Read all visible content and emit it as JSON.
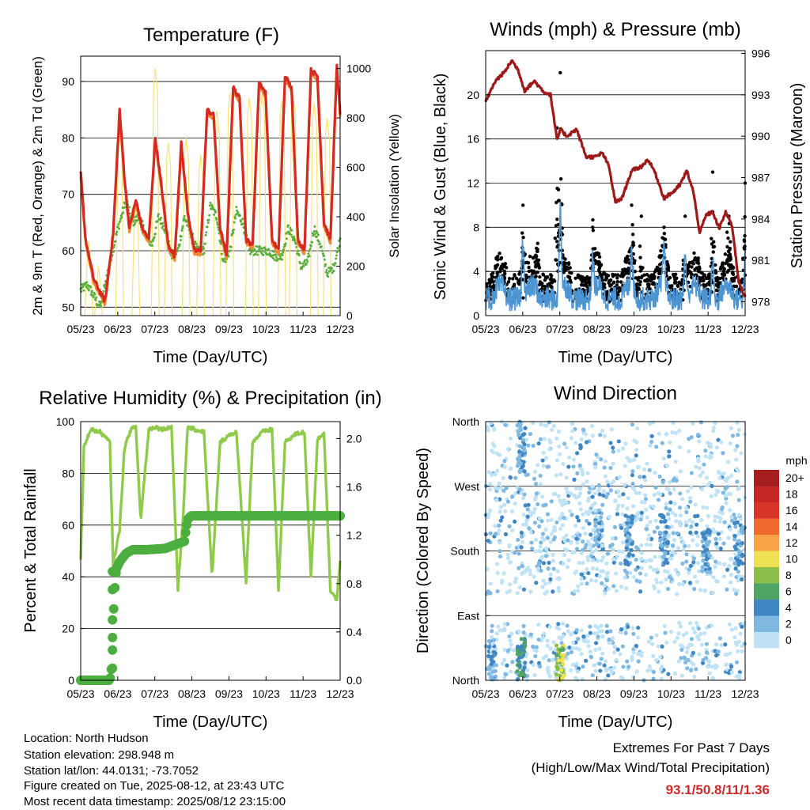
{
  "panels": {
    "temperature": {
      "title": "Temperature (F)",
      "xlabel": "Time (Day/UTC)",
      "ylabel_left": "2m & 9m T (Red, Orange) & 2m Td (Green)",
      "ylabel_right": "Solar Insolation (Yellow)",
      "x_ticks": [
        "05/23",
        "06/23",
        "07/23",
        "08/23",
        "09/23",
        "10/23",
        "11/23",
        "12/23"
      ],
      "y_ticks_left": [
        "50",
        "60",
        "70",
        "80",
        "90"
      ],
      "y_ticks_right": [
        "0",
        "200",
        "400",
        "600",
        "800",
        "1000"
      ]
    },
    "wind_pressure": {
      "title": "Winds (mph) & Pressure (mb)",
      "xlabel": "Time (Day/UTC)",
      "ylabel_left": "Sonic Wind & Gust (Blue, Black)",
      "ylabel_right": "Station Pressure (Maroon)",
      "x_ticks": [
        "05/23",
        "06/23",
        "07/23",
        "08/23",
        "09/23",
        "10/23",
        "11/23",
        "12/23"
      ],
      "y_ticks_left": [
        "0",
        "4",
        "8",
        "12",
        "16",
        "20"
      ],
      "y_ticks_right": [
        "978",
        "981",
        "984",
        "987",
        "990",
        "993",
        "996"
      ]
    },
    "humidity_precip": {
      "title": "Relative Humidity (%) & Precipitation (in)",
      "xlabel": "Time (Day/UTC)",
      "ylabel_left": "Percent & Total Rainfall",
      "x_ticks": [
        "05/23",
        "06/23",
        "07/23",
        "08/23",
        "09/23",
        "10/23",
        "11/23",
        "12/23"
      ],
      "y_ticks_left": [
        "0",
        "20",
        "40",
        "60",
        "80",
        "100"
      ],
      "y_ticks_right": [
        "0.0",
        "0.4",
        "0.8",
        "1.2",
        "1.6",
        "2.0"
      ]
    },
    "wind_direction": {
      "title": "Wind Direction",
      "xlabel": "Time (Day/UTC)",
      "ylabel_left": "Direction (Colored By Speed)",
      "x_ticks": [
        "05/23",
        "06/23",
        "07/23",
        "08/23",
        "09/23",
        "10/23",
        "11/23",
        "12/23"
      ],
      "y_ticks_left": [
        "North",
        "East",
        "South",
        "West",
        "North"
      ],
      "legend_title": "mph",
      "legend_labels": [
        "20+",
        "18",
        "16",
        "14",
        "12",
        "10",
        "8",
        "6",
        "4",
        "2",
        "0"
      ],
      "legend_colors": [
        "#a51f1f",
        "#c42727",
        "#d9362b",
        "#ee6a2f",
        "#f7a448",
        "#ede052",
        "#8cbf4a",
        "#4ea565",
        "#3f86c2",
        "#7fb9e2",
        "#bfe3f5"
      ]
    }
  },
  "footer": {
    "location": "Location: North Hudson",
    "elevation": "Station elevation: 298.948 m",
    "latlon": "Station lat/lon: 44.0131; -73.7052",
    "created": "Figure created on Tue, 2025-08-12, at 23:43 UTC",
    "recent": "Most recent data timestamp: 2025/08/12 23:15:00"
  },
  "extremes": {
    "title": "Extremes For Past 7 Days",
    "subtitle": "(High/Low/Max Wind/Total Precipitation)",
    "values": "93.1/50.8/11/1.36"
  },
  "colors": {
    "temp_red": "#d42a22",
    "temp_orange": "#f08a30",
    "dewpoint_green": "#5aaf3c",
    "solar_yellow": "#f7e27a",
    "gust_black": "#000000",
    "wind_blue": "#4c95d2",
    "pressure_maroon": "#9e1a1a",
    "rh_green": "#8fca4b",
    "precip_green": "#4cae3f"
  },
  "chart_data": [
    {
      "type": "line",
      "title": "Temperature (F)",
      "xlabel": "Time (Day/UTC)",
      "ylabel": "2m & 9m T (Red, Orange) & 2m Td (Green)",
      "y2label": "Solar Insolation (Yellow)",
      "x_ticks": [
        "05/23",
        "06/23",
        "07/23",
        "08/23",
        "09/23",
        "10/23",
        "11/23",
        "12/23"
      ],
      "ylim": [
        48.5,
        94.5
      ],
      "y2lim": [
        0,
        1050
      ],
      "series": [
        {
          "name": "2m T",
          "x": [
            0,
            0.15,
            0.4,
            0.75,
            1,
            1.2,
            1.35,
            1.5,
            1.7,
            1.9,
            2.1,
            2.3,
            2.5,
            2.7,
            2.9,
            3.1,
            3.3,
            3.5,
            3.7,
            3.9,
            4.1,
            4.3,
            4.5,
            4.7,
            4.9,
            5.1,
            5.3,
            5.5,
            5.7,
            5.9,
            6.1,
            6.3,
            6.5,
            6.7,
            6.9,
            7.1,
            7.3,
            7.5,
            7.7,
            7.9,
            8
          ],
          "values": [
            74,
            62,
            55,
            51,
            63,
            85,
            73,
            64,
            69,
            64,
            62,
            80,
            71,
            61,
            59,
            79,
            67,
            60,
            60,
            85,
            84,
            64,
            59,
            89,
            87,
            62,
            61,
            90,
            88,
            62,
            60,
            91,
            89,
            62,
            60,
            92,
            91,
            65,
            62,
            93,
            84
          ]
        },
        {
          "name": "2m Td",
          "x": [
            0,
            0.2,
            0.4,
            0.6,
            0.9,
            1.15,
            1.4,
            1.6,
            1.8,
            2,
            2.2,
            2.4,
            2.6,
            2.8,
            3,
            3.2,
            3.4,
            3.6,
            3.8,
            4,
            4.2,
            4.4,
            4.6,
            4.8,
            5,
            5.2,
            5.4,
            5.6,
            5.8,
            6,
            6.2,
            6.4,
            6.6,
            6.8,
            7,
            7.2,
            7.4,
            7.6,
            7.8,
            8
          ],
          "values": [
            53,
            54,
            52,
            50,
            58,
            64,
            69,
            65,
            66,
            63,
            61,
            66,
            64,
            59,
            60,
            66,
            63,
            60,
            60,
            68,
            66,
            58,
            60,
            67,
            65,
            60,
            60,
            60,
            60,
            59,
            59,
            64,
            62,
            57,
            58,
            64,
            61,
            56,
            57,
            62
          ]
        },
        {
          "name": "Solar Insolation",
          "axis": "right",
          "peaks_x": [
            0.25,
            0.55,
            1.2,
            1.7,
            2.3,
            2.7,
            3.25,
            3.7,
            4.2,
            4.6,
            5.2,
            5.6,
            6.2,
            6.55,
            7.2,
            7.6
          ],
          "peaks_values": [
            300,
            200,
            750,
            450,
            1000,
            700,
            720,
            650,
            830,
            900,
            880,
            900,
            870,
            900,
            860,
            800
          ]
        }
      ]
    },
    {
      "type": "line",
      "title": "Winds (mph) & Pressure (mb)",
      "xlabel": "Time (Day/UTC)",
      "ylabel": "Sonic Wind & Gust (Blue, Black)",
      "y2label": "Station Pressure (Maroon)",
      "x_ticks": [
        "05/23",
        "06/23",
        "07/23",
        "08/23",
        "09/23",
        "10/23",
        "11/23",
        "12/23"
      ],
      "ylim": [
        0,
        24
      ],
      "y2lim": [
        977,
        996.2
      ],
      "series": [
        {
          "name": "Station Pressure",
          "axis": "right",
          "x": [
            0,
            0.3,
            0.6,
            0.8,
            1,
            1.2,
            1.5,
            1.8,
            2,
            2.2,
            2.3,
            2.5,
            2.8,
            3.1,
            3.4,
            3.6,
            3.8,
            4,
            4.2,
            4.5,
            4.8,
            5,
            5.2,
            5.5,
            5.8,
            6,
            6.2,
            6.4,
            6.6,
            6.8,
            7,
            7.2,
            7.4,
            7.6,
            7.8,
            8
          ],
          "values": [
            992.5,
            994,
            994.7,
            995.5,
            994.8,
            993.3,
            994,
            993.2,
            993,
            989.7,
            990.5,
            990,
            990.5,
            988.5,
            988.5,
            988.8,
            987.8,
            985.2,
            985.5,
            987.5,
            987.8,
            988.3,
            987.5,
            985.5,
            986,
            986.5,
            987.5,
            986,
            983,
            984.3,
            984.5,
            983.3,
            984.5,
            983.5,
            979.5,
            978.3
          ]
        },
        {
          "name": "Gust",
          "peaks_x": [
            1.15,
            1.6,
            2.2,
            2.3,
            3.3,
            4.5,
            4.8,
            5.5,
            6.15,
            7,
            7.5,
            8
          ],
          "peaks_values": [
            10,
            6,
            17,
            22,
            8,
            10,
            9,
            8,
            9,
            13,
            9,
            12
          ]
        },
        {
          "name": "Sonic Wind",
          "peaks_x": [
            1.15,
            2.3,
            3.3,
            4.5,
            5.5,
            6.15,
            7,
            8
          ],
          "peaks_values": [
            8,
            11,
            4,
            5,
            5,
            6,
            5,
            5
          ]
        }
      ]
    },
    {
      "type": "line",
      "title": "Relative Humidity (%) & Precipitation (in)",
      "xlabel": "Time (Day/UTC)",
      "ylabel": "Percent & Total Rainfall",
      "x_ticks": [
        "05/23",
        "06/23",
        "07/23",
        "08/23",
        "09/23",
        "10/23",
        "11/23",
        "12/23"
      ],
      "ylim": [
        0,
        100
      ],
      "y2lim": [
        0,
        2.14
      ],
      "series": [
        {
          "name": "Relative Humidity",
          "x": [
            0,
            0.1,
            0.3,
            0.6,
            0.9,
            1.0,
            1.2,
            1.35,
            1.55,
            1.7,
            1.85,
            2.1,
            2.3,
            2.5,
            2.8,
            3.0,
            3.15,
            3.3,
            3.5,
            3.8,
            4.05,
            4.3,
            4.6,
            4.8,
            5.1,
            5.3,
            5.6,
            5.9,
            6.1,
            6.3,
            6.6,
            6.9,
            7.1,
            7.3,
            7.5,
            7.7,
            7.9,
            8
          ],
          "values": [
            47,
            90,
            97,
            96,
            92,
            45,
            58,
            90,
            97,
            98,
            62,
            97,
            98,
            97,
            98,
            35,
            62,
            98,
            97,
            96,
            40,
            92,
            95,
            96,
            38,
            92,
            96,
            97,
            35,
            92,
            95,
            96,
            40,
            93,
            96,
            35,
            31,
            46
          ]
        },
        {
          "name": "Total Precipitation",
          "axis": "right",
          "x": [
            0,
            0.4,
            0.9,
            0.95,
            1.0,
            1.05,
            1.1,
            1.2,
            1.4,
            1.6,
            2.0,
            2.6,
            3.2,
            3.25,
            3.3,
            3.4,
            8
          ],
          "values": [
            0,
            0,
            0,
            0.1,
            0.5,
            0.75,
            0.92,
            0.98,
            1.05,
            1.08,
            1.08,
            1.09,
            1.15,
            1.25,
            1.33,
            1.36,
            1.36
          ]
        }
      ]
    },
    {
      "type": "scatter",
      "title": "Wind Direction",
      "xlabel": "Time (Day/UTC)",
      "ylabel": "Direction (Colored By Speed)",
      "x_ticks": [
        "05/23",
        "06/23",
        "07/23",
        "08/23",
        "09/23",
        "10/23",
        "11/23",
        "12/23"
      ],
      "y_ticks": [
        "North",
        "East",
        "South",
        "West",
        "North"
      ],
      "ylim": [
        0,
        360
      ],
      "colorbar": {
        "title": "mph",
        "labels": [
          "20+",
          "18",
          "16",
          "14",
          "12",
          "10",
          "8",
          "6",
          "4",
          "2",
          "0"
        ]
      },
      "clusters": [
        {
          "x": 0.2,
          "direction_range": [
            0,
            60
          ],
          "speed": 3
        },
        {
          "x": 1.1,
          "direction_range": [
            0,
            60
          ],
          "speed": 6
        },
        {
          "x": 1.1,
          "direction_range": [
            290,
            360
          ],
          "speed": 4
        },
        {
          "x": 2.3,
          "direction_range": [
            0,
            50
          ],
          "speed": 9
        },
        {
          "x": 3.5,
          "direction_range": [
            180,
            240
          ],
          "speed": 3
        },
        {
          "x": 4.4,
          "direction_range": [
            160,
            230
          ],
          "speed": 4
        },
        {
          "x": 5.5,
          "direction_range": [
            160,
            230
          ],
          "speed": 4
        },
        {
          "x": 6.8,
          "direction_range": [
            150,
            210
          ],
          "speed": 4
        },
        {
          "x": 7.8,
          "direction_range": [
            160,
            220
          ],
          "speed": 4
        }
      ]
    }
  ]
}
